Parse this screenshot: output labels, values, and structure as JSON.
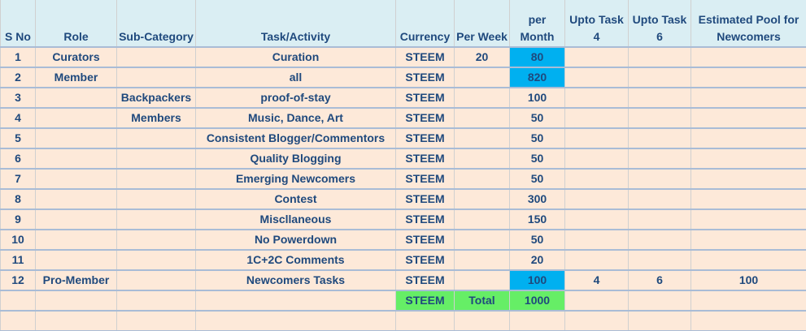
{
  "table": {
    "header": [
      "S No",
      "Role",
      "Sub-Category",
      "Task/Activity",
      "Currency",
      "Per Week",
      "per Month",
      "Upto Task 4",
      "Upto Task 6",
      "Estimated Pool for Newcomers"
    ],
    "rows": [
      [
        1,
        "Curators",
        null,
        "Curation",
        "STEEM",
        20,
        80,
        null,
        null,
        null
      ],
      [
        2,
        "Member",
        null,
        "all",
        "STEEM",
        null,
        820,
        null,
        null,
        null
      ],
      [
        3,
        null,
        "Backpackers",
        "proof-of-stay",
        "STEEM",
        null,
        100,
        null,
        null,
        null
      ],
      [
        4,
        null,
        "Members",
        "Music, Dance, Art",
        "STEEM",
        null,
        50,
        null,
        null,
        null
      ],
      [
        5,
        null,
        null,
        "Consistent Blogger/Commentors",
        "STEEM",
        null,
        50,
        null,
        null,
        null
      ],
      [
        6,
        null,
        null,
        "Quality Blogging",
        "STEEM",
        null,
        50,
        null,
        null,
        null
      ],
      [
        7,
        null,
        null,
        "Emerging Newcomers",
        "STEEM",
        null,
        50,
        null,
        null,
        null
      ],
      [
        8,
        null,
        null,
        "Contest",
        "STEEM",
        null,
        300,
        null,
        null,
        null
      ],
      [
        9,
        null,
        null,
        "Miscllaneous",
        "STEEM",
        null,
        150,
        null,
        null,
        null
      ],
      [
        10,
        null,
        null,
        "No Powerdown",
        "STEEM",
        null,
        50,
        null,
        null,
        null
      ],
      [
        11,
        null,
        null,
        "1C+2C Comments",
        "STEEM",
        null,
        20,
        null,
        null,
        null
      ],
      [
        12,
        "Pro-Member",
        null,
        "Newcomers Tasks",
        "STEEM",
        null,
        100,
        4,
        6,
        100
      ],
      [
        null,
        null,
        null,
        null,
        "STEEM",
        "Total",
        1000,
        null,
        null,
        null
      ],
      [
        null,
        null,
        null,
        null,
        null,
        null,
        null,
        null,
        null,
        null
      ]
    ]
  }
}
